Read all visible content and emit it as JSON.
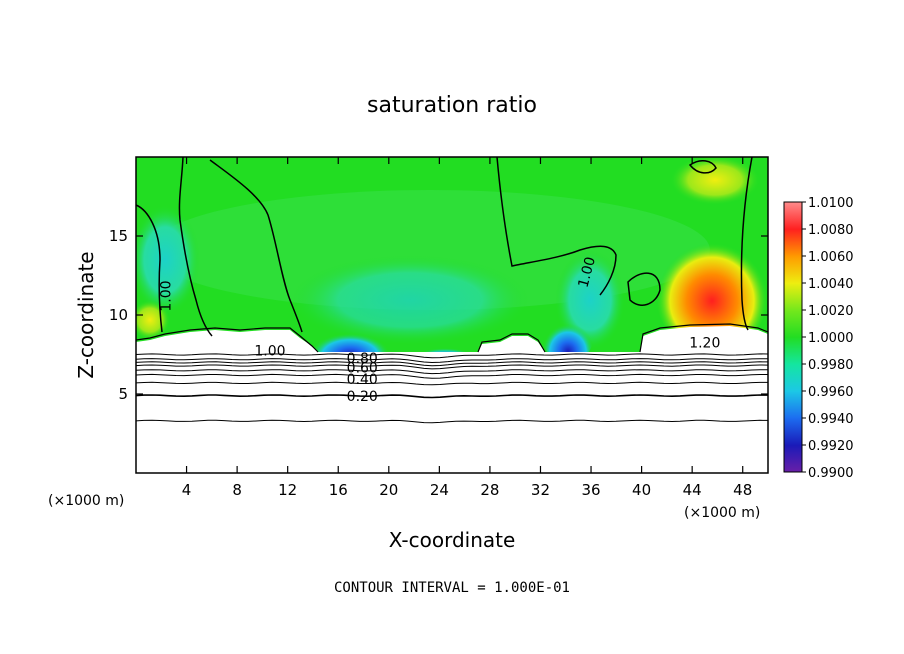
{
  "chart_data": {
    "type": "heatmap",
    "title": "saturation ratio",
    "xlabel": "X-coordinate",
    "ylabel": "Z-coordinate",
    "x_unit": "(×1000 m)",
    "xlim": [
      0,
      50
    ],
    "ylim": [
      0,
      20
    ],
    "x_ticks": [
      4,
      8,
      12,
      16,
      20,
      24,
      28,
      32,
      36,
      40,
      44,
      48
    ],
    "y_ticks": [
      5,
      10,
      15
    ],
    "grid": false,
    "footer": "CONTOUR INTERVAL = 1.000E-01",
    "colorbar": {
      "levels": [
        "0.9900",
        "0.9920",
        "0.9940",
        "0.9960",
        "0.9980",
        "1.0000",
        "1.0020",
        "1.0040",
        "1.0060",
        "1.0080",
        "1.0100"
      ],
      "colors": [
        "#6a1fa8",
        "#1a1ab8",
        "#1c6cf0",
        "#1cc8e6",
        "#14e6a0",
        "#22dd22",
        "#74e81c",
        "#eeee10",
        "#ff9a00",
        "#ff1f1f",
        "#ff8c8c"
      ]
    },
    "contour_labels": [
      {
        "text": "1.00",
        "x": 2.4,
        "z": 11.2
      },
      {
        "text": "1.00",
        "x": 10.6,
        "z": 7.7
      },
      {
        "text": "1.00",
        "x": 35.7,
        "z": 12.7
      },
      {
        "text": "1.20",
        "x": 45.0,
        "z": 8.2
      },
      {
        "text": "0.80",
        "x": 17.9,
        "z": 7.2
      },
      {
        "text": "0.60",
        "x": 17.9,
        "z": 6.6
      },
      {
        "text": "0.40",
        "x": 17.9,
        "z": 5.9
      },
      {
        "text": "0.20",
        "x": 17.9,
        "z": 4.8
      }
    ],
    "contour_levels_z": [
      3.3,
      4.9,
      5.7,
      6.2,
      6.5,
      6.8,
      7.0,
      7.2,
      7.5
    ]
  }
}
